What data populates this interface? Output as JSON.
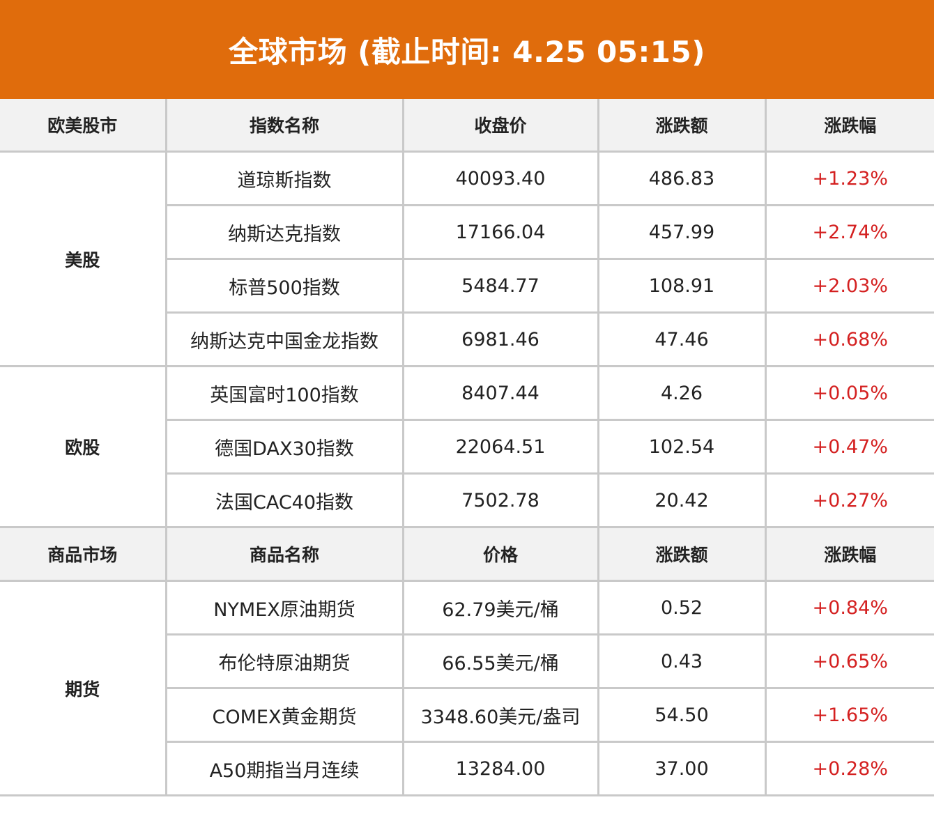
{
  "title": "全球市场 (截止时间: 4.25 05:15)",
  "colors": {
    "banner": "#e06c0c",
    "header_bg": "#f2f2f2",
    "border": "#c9c9c9",
    "up": "#d42020"
  },
  "stocks": {
    "headers": [
      "欧美股市",
      "指数名称",
      "收盘价",
      "涨跌额",
      "涨跌幅"
    ],
    "groups": [
      {
        "name": "美股",
        "rows": [
          {
            "name": "道琼斯指数",
            "price": "40093.40",
            "change": "486.83",
            "pct": "+1.23%"
          },
          {
            "name": "纳斯达克指数",
            "price": "17166.04",
            "change": "457.99",
            "pct": "+2.74%"
          },
          {
            "name": "标普500指数",
            "price": "5484.77",
            "change": "108.91",
            "pct": "+2.03%"
          },
          {
            "name": "纳斯达克中国金龙指数",
            "price": "6981.46",
            "change": "47.46",
            "pct": "+0.68%"
          }
        ]
      },
      {
        "name": "欧股",
        "rows": [
          {
            "name": "英国富时100指数",
            "price": "8407.44",
            "change": "4.26",
            "pct": "+0.05%"
          },
          {
            "name": "德国DAX30指数",
            "price": "22064.51",
            "change": "102.54",
            "pct": "+0.47%"
          },
          {
            "name": "法国CAC40指数",
            "price": "7502.78",
            "change": "20.42",
            "pct": "+0.27%"
          }
        ]
      }
    ]
  },
  "commodities": {
    "headers": [
      "商品市场",
      "商品名称",
      "价格",
      "涨跌额",
      "涨跌幅"
    ],
    "groups": [
      {
        "name": "期货",
        "rows": [
          {
            "name": "NYMEX原油期货",
            "price": "62.79美元/桶",
            "change": "0.52",
            "pct": "+0.84%"
          },
          {
            "name": "布伦特原油期货",
            "price": "66.55美元/桶",
            "change": "0.43",
            "pct": "+0.65%"
          },
          {
            "name": "COMEX黄金期货",
            "price": "3348.60美元/盎司",
            "change": "54.50",
            "pct": "+1.65%"
          },
          {
            "name": "A50期指当月连续",
            "price": "13284.00",
            "change": "37.00",
            "pct": "+0.28%"
          }
        ]
      }
    ]
  }
}
